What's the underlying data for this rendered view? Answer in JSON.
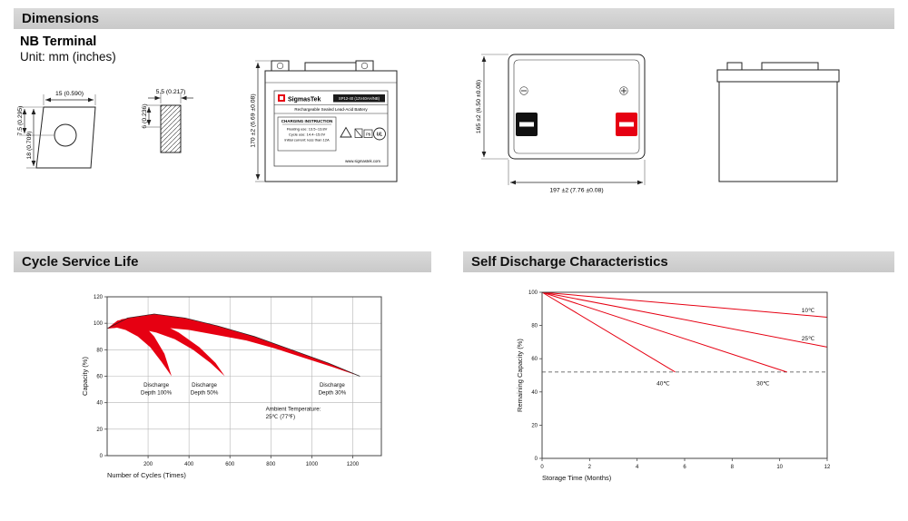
{
  "sections": {
    "dimensions": "Dimensions",
    "cycle_life": "Cycle Service Life",
    "self_discharge": "Self Discharge Characteristics"
  },
  "terminal": {
    "type": "NB Terminal",
    "unit": "Unit: mm (inches)"
  },
  "dimensions": {
    "terminal_width": "15 (0.590)",
    "terminal_upper_height": "7.5 (0.295)",
    "terminal_height": "18 (0.709)",
    "terminal_side_width": "5.5 (0.217)",
    "terminal_side_height": "6 (0.236)",
    "battery_height": "170 ±2 (6.69 ±0.08)",
    "battery_depth": "165 ±2 (6.50 ±0.08)",
    "battery_width": "197 ±2 (7.76 ±0.08)"
  },
  "battery_label": {
    "brand": "SigmasTek",
    "model": "SP12-40 (12V40AH/NB)",
    "type_line": "Rechargeable Sealed Lead-Acid Battery",
    "charging_title": "CHARGING INSTRUCTION",
    "charging_lines": [
      "Floating use: 13.5~13.8V",
      "Cycle use: 14.4~15.0V",
      "Initial current: less than 12A"
    ],
    "website": "www.sigmastek.com",
    "pb": "Pb",
    "ul": "UL"
  },
  "colors": {
    "red": "#e60012",
    "header_bg": "#d2d2d2",
    "grid": "#b5b5b5"
  },
  "chart_data": [
    {
      "type": "area",
      "title": "Cycle Service Life",
      "xlabel": "Number of Cycles (Times)",
      "ylabel": "Capacity (%)",
      "xlim": [
        0,
        1340
      ],
      "ylim": [
        0,
        120
      ],
      "xticks": [
        200,
        400,
        600,
        800,
        1000,
        1200
      ],
      "yticks": [
        0,
        20,
        40,
        60,
        80,
        100,
        120
      ],
      "grid": true,
      "series_color": "#e60012",
      "bands": [
        {
          "name": "Discharge Depth 100%",
          "outline": false,
          "points": [
            [
              0,
              96
            ],
            [
              50,
              102
            ],
            [
              110,
              104
            ],
            [
              170,
              100
            ],
            [
              230,
              90
            ],
            [
              280,
              77
            ],
            [
              315,
              60
            ],
            [
              265,
              71
            ],
            [
              210,
              82
            ],
            [
              150,
              90
            ],
            [
              90,
              95
            ],
            [
              40,
              97
            ],
            [
              0,
              96
            ]
          ]
        },
        {
          "name": "Discharge Depth 50%",
          "outline": false,
          "points": [
            [
              0,
              96
            ],
            [
              70,
              103
            ],
            [
              150,
              105
            ],
            [
              250,
              101
            ],
            [
              350,
              93
            ],
            [
              450,
              82
            ],
            [
              530,
              70
            ],
            [
              575,
              60
            ],
            [
              505,
              70
            ],
            [
              420,
              80
            ],
            [
              330,
              88
            ],
            [
              240,
              93
            ],
            [
              150,
              96
            ],
            [
              70,
              97
            ],
            [
              0,
              96
            ]
          ]
        },
        {
          "name": "Discharge Depth 30%",
          "outline": true,
          "points": [
            [
              0,
              96
            ],
            [
              100,
              104
            ],
            [
              230,
              107
            ],
            [
              380,
              104
            ],
            [
              540,
              98
            ],
            [
              720,
              90
            ],
            [
              900,
              80
            ],
            [
              1080,
              70
            ],
            [
              1235,
              60
            ],
            [
              1100,
              67
            ],
            [
              960,
              74
            ],
            [
              820,
              81
            ],
            [
              680,
              87
            ],
            [
              540,
              91
            ],
            [
              400,
              95
            ],
            [
              260,
              97
            ],
            [
              130,
              98
            ],
            [
              0,
              96
            ]
          ]
        }
      ],
      "annotations": [
        {
          "lines": [
            "Discharge",
            "Depth 100%"
          ],
          "x": 240,
          "y": 52,
          "align": "middle"
        },
        {
          "lines": [
            "Discharge",
            "Depth 50%"
          ],
          "x": 475,
          "y": 52,
          "align": "middle"
        },
        {
          "lines": [
            "Discharge",
            "Depth 30%"
          ],
          "x": 1100,
          "y": 52,
          "align": "middle"
        },
        {
          "lines": [
            "Ambient Temperature:",
            "25℃ (77℉)"
          ],
          "x": 775,
          "y": 34,
          "align": "start"
        }
      ]
    },
    {
      "type": "line",
      "title": "Self Discharge Characteristics",
      "xlabel": "Storage Time (Months)",
      "ylabel": "Remaining Capacity (%)",
      "xlim": [
        0,
        12
      ],
      "ylim": [
        0,
        100
      ],
      "xticks": [
        0,
        2,
        4,
        6,
        8,
        10,
        12
      ],
      "yticks": [
        0,
        20,
        40,
        60,
        80,
        100
      ],
      "grid": false,
      "series_color": "#e60012",
      "dashed_line_y": 52,
      "series": [
        {
          "name": "10℃",
          "points": [
            [
              0,
              100
            ],
            [
              12,
              85
            ]
          ],
          "label_pos": [
            11.2,
            88
          ]
        },
        {
          "name": "25℃",
          "points": [
            [
              0,
              100
            ],
            [
              12,
              67
            ]
          ],
          "label_pos": [
            11.2,
            71
          ]
        },
        {
          "name": "30℃",
          "points": [
            [
              0,
              100
            ],
            [
              10.3,
              52
            ]
          ],
          "label_pos": [
            9.3,
            44
          ]
        },
        {
          "name": "40℃",
          "points": [
            [
              0,
              100
            ],
            [
              5.6,
              52
            ]
          ],
          "label_pos": [
            5.1,
            44
          ]
        }
      ]
    }
  ]
}
